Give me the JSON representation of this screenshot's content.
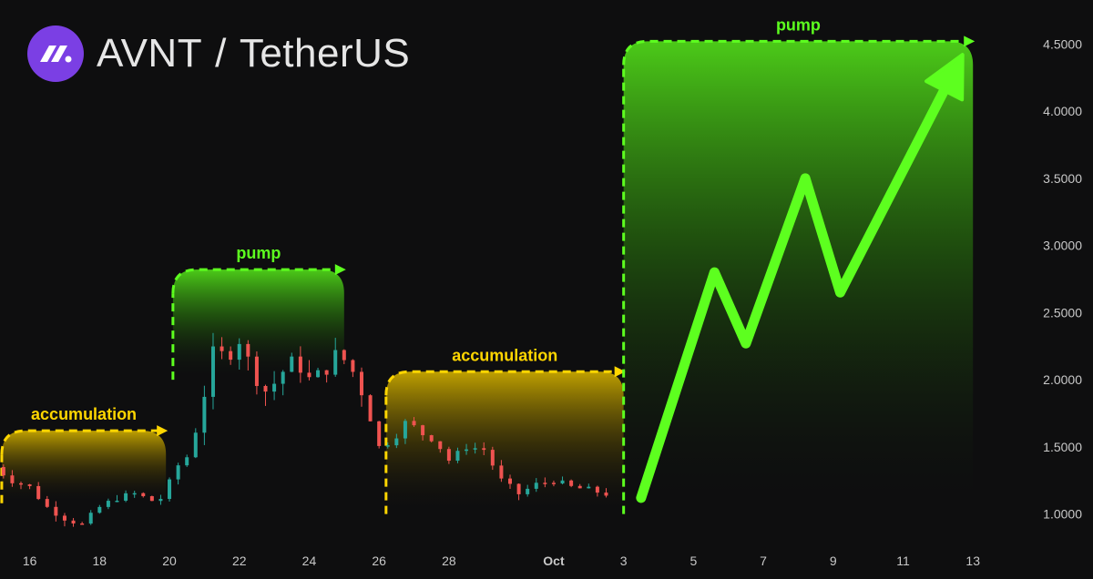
{
  "header": {
    "base": "AVNT",
    "separator": "/",
    "quote": "TetherUS"
  },
  "colors": {
    "background": "#0e0e0f",
    "up": "#26a69a",
    "down": "#ef5350",
    "pump": "#5dff1f",
    "accumulation": "#ffd600",
    "axis_text": "#c8c8c8",
    "logo": "#7b3fe4"
  },
  "chart_data": {
    "type": "candlestick",
    "y_ticks": [
      "1.0000",
      "1.5000",
      "2.0000",
      "2.5000",
      "3.0000",
      "3.5000",
      "4.0000",
      "4.5000"
    ],
    "y_tick_values": [
      1.0,
      1.5,
      2.0,
      2.5,
      3.0,
      3.5,
      4.0,
      4.5
    ],
    "ylim": [
      0.76,
      4.76
    ],
    "x_ticks": [
      {
        "label": "16",
        "day": 16
      },
      {
        "label": "18",
        "day": 18
      },
      {
        "label": "20",
        "day": 20
      },
      {
        "label": "22",
        "day": 22
      },
      {
        "label": "24",
        "day": 24
      },
      {
        "label": "26",
        "day": 26
      },
      {
        "label": "28",
        "day": 28
      },
      {
        "label": "Oct",
        "day": 31
      },
      {
        "label": "3",
        "day": 33
      },
      {
        "label": "5",
        "day": 35
      },
      {
        "label": "7",
        "day": 37
      },
      {
        "label": "9",
        "day": 39
      },
      {
        "label": "11",
        "day": 41
      },
      {
        "label": "13",
        "day": 43
      }
    ],
    "xlim": [
      15.15,
      44.35
    ],
    "price_path": [
      [
        15.0,
        1.35
      ],
      [
        15.5,
        1.25
      ],
      [
        16.0,
        1.2
      ],
      [
        16.5,
        1.05
      ],
      [
        17.0,
        0.97
      ],
      [
        17.5,
        0.92
      ],
      [
        18.0,
        1.05
      ],
      [
        18.5,
        1.12
      ],
      [
        19.0,
        1.15
      ],
      [
        19.5,
        1.1
      ],
      [
        19.8,
        1.12
      ],
      [
        20.2,
        1.35
      ],
      [
        20.6,
        1.45
      ],
      [
        21.0,
        1.9
      ],
      [
        21.3,
        2.25
      ],
      [
        21.6,
        2.15
      ],
      [
        22.0,
        2.3
      ],
      [
        22.4,
        2.05
      ],
      [
        22.8,
        1.9
      ],
      [
        23.2,
        2.05
      ],
      [
        23.6,
        2.15
      ],
      [
        24.0,
        2.0
      ],
      [
        24.4,
        2.05
      ],
      [
        24.8,
        2.2
      ],
      [
        25.1,
        2.12
      ],
      [
        25.4,
        2.0
      ],
      [
        25.7,
        1.75
      ],
      [
        26.0,
        1.5
      ],
      [
        26.4,
        1.55
      ],
      [
        26.8,
        1.7
      ],
      [
        27.2,
        1.6
      ],
      [
        27.6,
        1.55
      ],
      [
        28.0,
        1.4
      ],
      [
        28.5,
        1.5
      ],
      [
        29.0,
        1.48
      ],
      [
        29.5,
        1.25
      ],
      [
        30.0,
        1.15
      ],
      [
        30.5,
        1.22
      ],
      [
        31.0,
        1.25
      ],
      [
        31.5,
        1.2
      ],
      [
        32.0,
        1.18
      ],
      [
        32.5,
        1.15
      ]
    ],
    "zones": [
      {
        "label": "accumulation",
        "color": "accumulation",
        "x_start": 15.2,
        "x_end": 19.9,
        "y_top": 1.62,
        "y_bottom": 1.08
      },
      {
        "label": "pump",
        "color": "pump",
        "x_start": 20.1,
        "x_end": 25.0,
        "y_top": 2.82,
        "y_bottom": 2.0
      },
      {
        "label": "accumulation",
        "color": "accumulation",
        "x_start": 26.2,
        "x_end": 33.0,
        "y_top": 2.06,
        "y_bottom": 1.0
      },
      {
        "label": "pump",
        "color": "pump",
        "x_start": 33.0,
        "x_end": 43.0,
        "y_top": 4.52,
        "y_bottom": 1.0
      }
    ],
    "projection": [
      [
        33.5,
        1.12
      ],
      [
        35.6,
        2.8
      ],
      [
        36.5,
        2.27
      ],
      [
        38.2,
        3.5
      ],
      [
        39.2,
        2.65
      ],
      [
        42.7,
        4.42
      ]
    ]
  }
}
